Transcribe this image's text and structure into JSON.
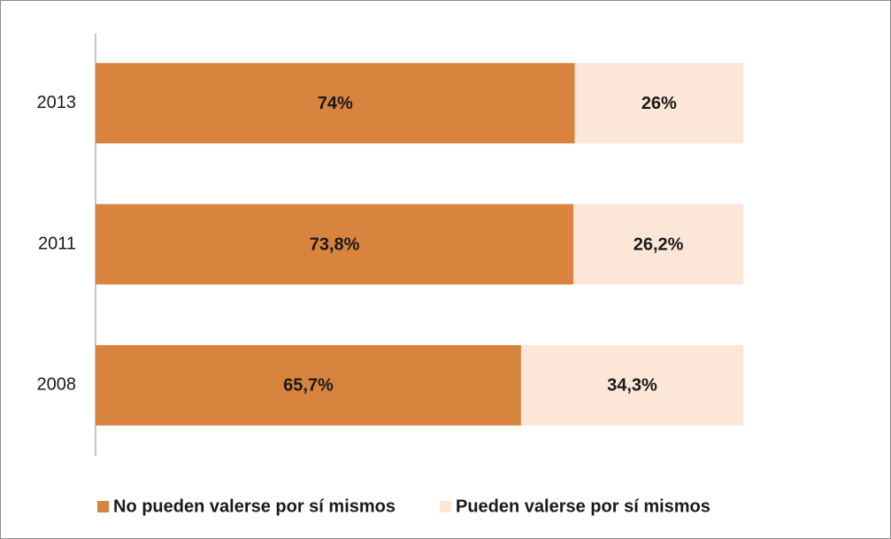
{
  "chart_data": {
    "type": "bar",
    "orientation": "horizontal",
    "stacked": true,
    "categories": [
      "2013",
      "2011",
      "2008"
    ],
    "series": [
      {
        "name": "No pueden valerse por sí mismos",
        "color": "#d9843e",
        "values": [
          74,
          73.8,
          65.7
        ],
        "value_labels": [
          "74%",
          "73,8%",
          "65,7%"
        ]
      },
      {
        "name": "Pueden valerse por sí mismos",
        "color": "#fce6d7",
        "values": [
          26,
          26.2,
          34.3
        ],
        "value_labels": [
          "26%",
          "26,2%",
          "34,3%"
        ]
      }
    ],
    "legend": "bottom"
  }
}
